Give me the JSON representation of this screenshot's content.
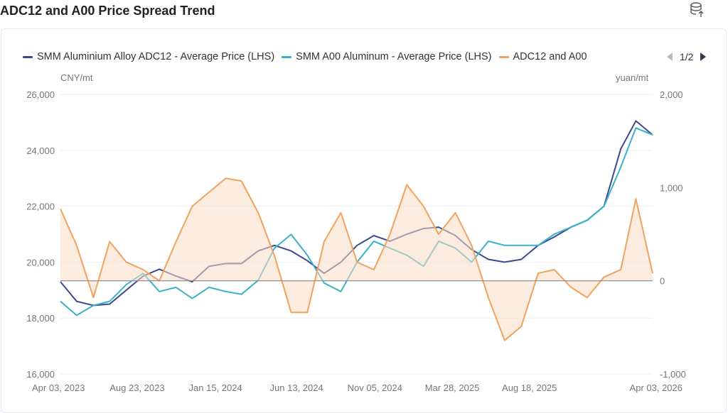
{
  "header": {
    "title": "ADC12 and A00 Price Spread Trend",
    "icon": "database-export-icon"
  },
  "legend": {
    "page": "1/2",
    "prev_icon": "triangle-left-icon",
    "next_icon": "triangle-right-icon"
  },
  "chart_data": {
    "type": "line",
    "title": "ADC12 and A00 Price Spread Trend",
    "left_unit": "CNY/mt",
    "right_unit": "yuan/mt",
    "left_ylim": [
      16000,
      26000
    ],
    "left_ticks": [
      "16,000",
      "18,000",
      "20,000",
      "22,000",
      "24,000",
      "26,000"
    ],
    "right_ylim": [
      -1000,
      2000
    ],
    "right_ticks": [
      "-1,000",
      "0",
      "1,000",
      "2,000"
    ],
    "x_ticks": [
      "Apr 03, 2023",
      "Aug 23, 2023",
      "Jan 15, 2024",
      "Jun 13, 2024",
      "Nov 05, 2024",
      "Mar 28, 2025",
      "Aug 18, 2025",
      "Apr 03, 2026"
    ],
    "x_tick_dates": [
      "2023-04-03",
      "2023-08-23",
      "2024-01-15",
      "2024-06-13",
      "2024-11-05",
      "2025-03-28",
      "2025-08-18",
      "2026-04-03"
    ],
    "grid": true,
    "legend_position": "top",
    "dates": [
      "2023-04-03",
      "2023-05-03",
      "2023-06-03",
      "2023-07-03",
      "2023-08-03",
      "2023-09-03",
      "2023-10-03",
      "2023-11-03",
      "2023-12-03",
      "2024-01-03",
      "2024-02-03",
      "2024-03-03",
      "2024-04-03",
      "2024-05-03",
      "2024-06-03",
      "2024-07-03",
      "2024-08-03",
      "2024-09-03",
      "2024-10-03",
      "2024-11-03",
      "2024-12-03",
      "2025-01-03",
      "2025-02-03",
      "2025-03-03",
      "2025-04-03",
      "2025-05-03",
      "2025-06-03",
      "2025-07-03",
      "2025-08-03",
      "2025-09-03",
      "2025-10-03",
      "2025-11-03",
      "2025-12-03",
      "2026-01-03",
      "2026-02-03",
      "2026-03-03",
      "2026-04-03"
    ],
    "series": [
      {
        "name": "SMM Aluminium Alloy ADC12 - Average Price (LHS)",
        "axis": "left",
        "color": "#3d4a8f",
        "type": "line",
        "values": [
          19300,
          18600,
          18450,
          18500,
          19000,
          19500,
          19750,
          19500,
          19300,
          19850,
          19950,
          19950,
          20400,
          20600,
          20400,
          20050,
          19600,
          20000,
          20600,
          20950,
          20750,
          21000,
          21200,
          21250,
          20950,
          20450,
          20100,
          20000,
          20100,
          20600,
          20900,
          21250,
          21500,
          22000,
          24050,
          25050,
          24550
        ]
      },
      {
        "name": "SMM A00 Aluminum - Average Price (LHS)",
        "axis": "left",
        "color": "#3ab1c8",
        "type": "line",
        "values": [
          18600,
          18100,
          18450,
          18600,
          19200,
          19600,
          18950,
          19100,
          18700,
          19100,
          18950,
          18850,
          19350,
          20500,
          20990,
          20250,
          19250,
          18950,
          20000,
          20750,
          20500,
          20250,
          19850,
          20750,
          20500,
          20000,
          20750,
          20600,
          20600,
          20600,
          21000,
          21250,
          21500,
          22000,
          23400,
          24800,
          24550
        ]
      },
      {
        "name": "ADC12 and A00",
        "axis": "right",
        "color": "#f0a35e",
        "type": "area",
        "values": [
          770,
          380,
          -180,
          420,
          200,
          120,
          0,
          420,
          800,
          950,
          1100,
          1070,
          730,
          270,
          -340,
          -340,
          420,
          730,
          200,
          120,
          500,
          1030,
          800,
          500,
          730,
          380,
          -180,
          -640,
          -490,
          80,
          120,
          -70,
          -180,
          40,
          120,
          880,
          80
        ]
      }
    ]
  }
}
